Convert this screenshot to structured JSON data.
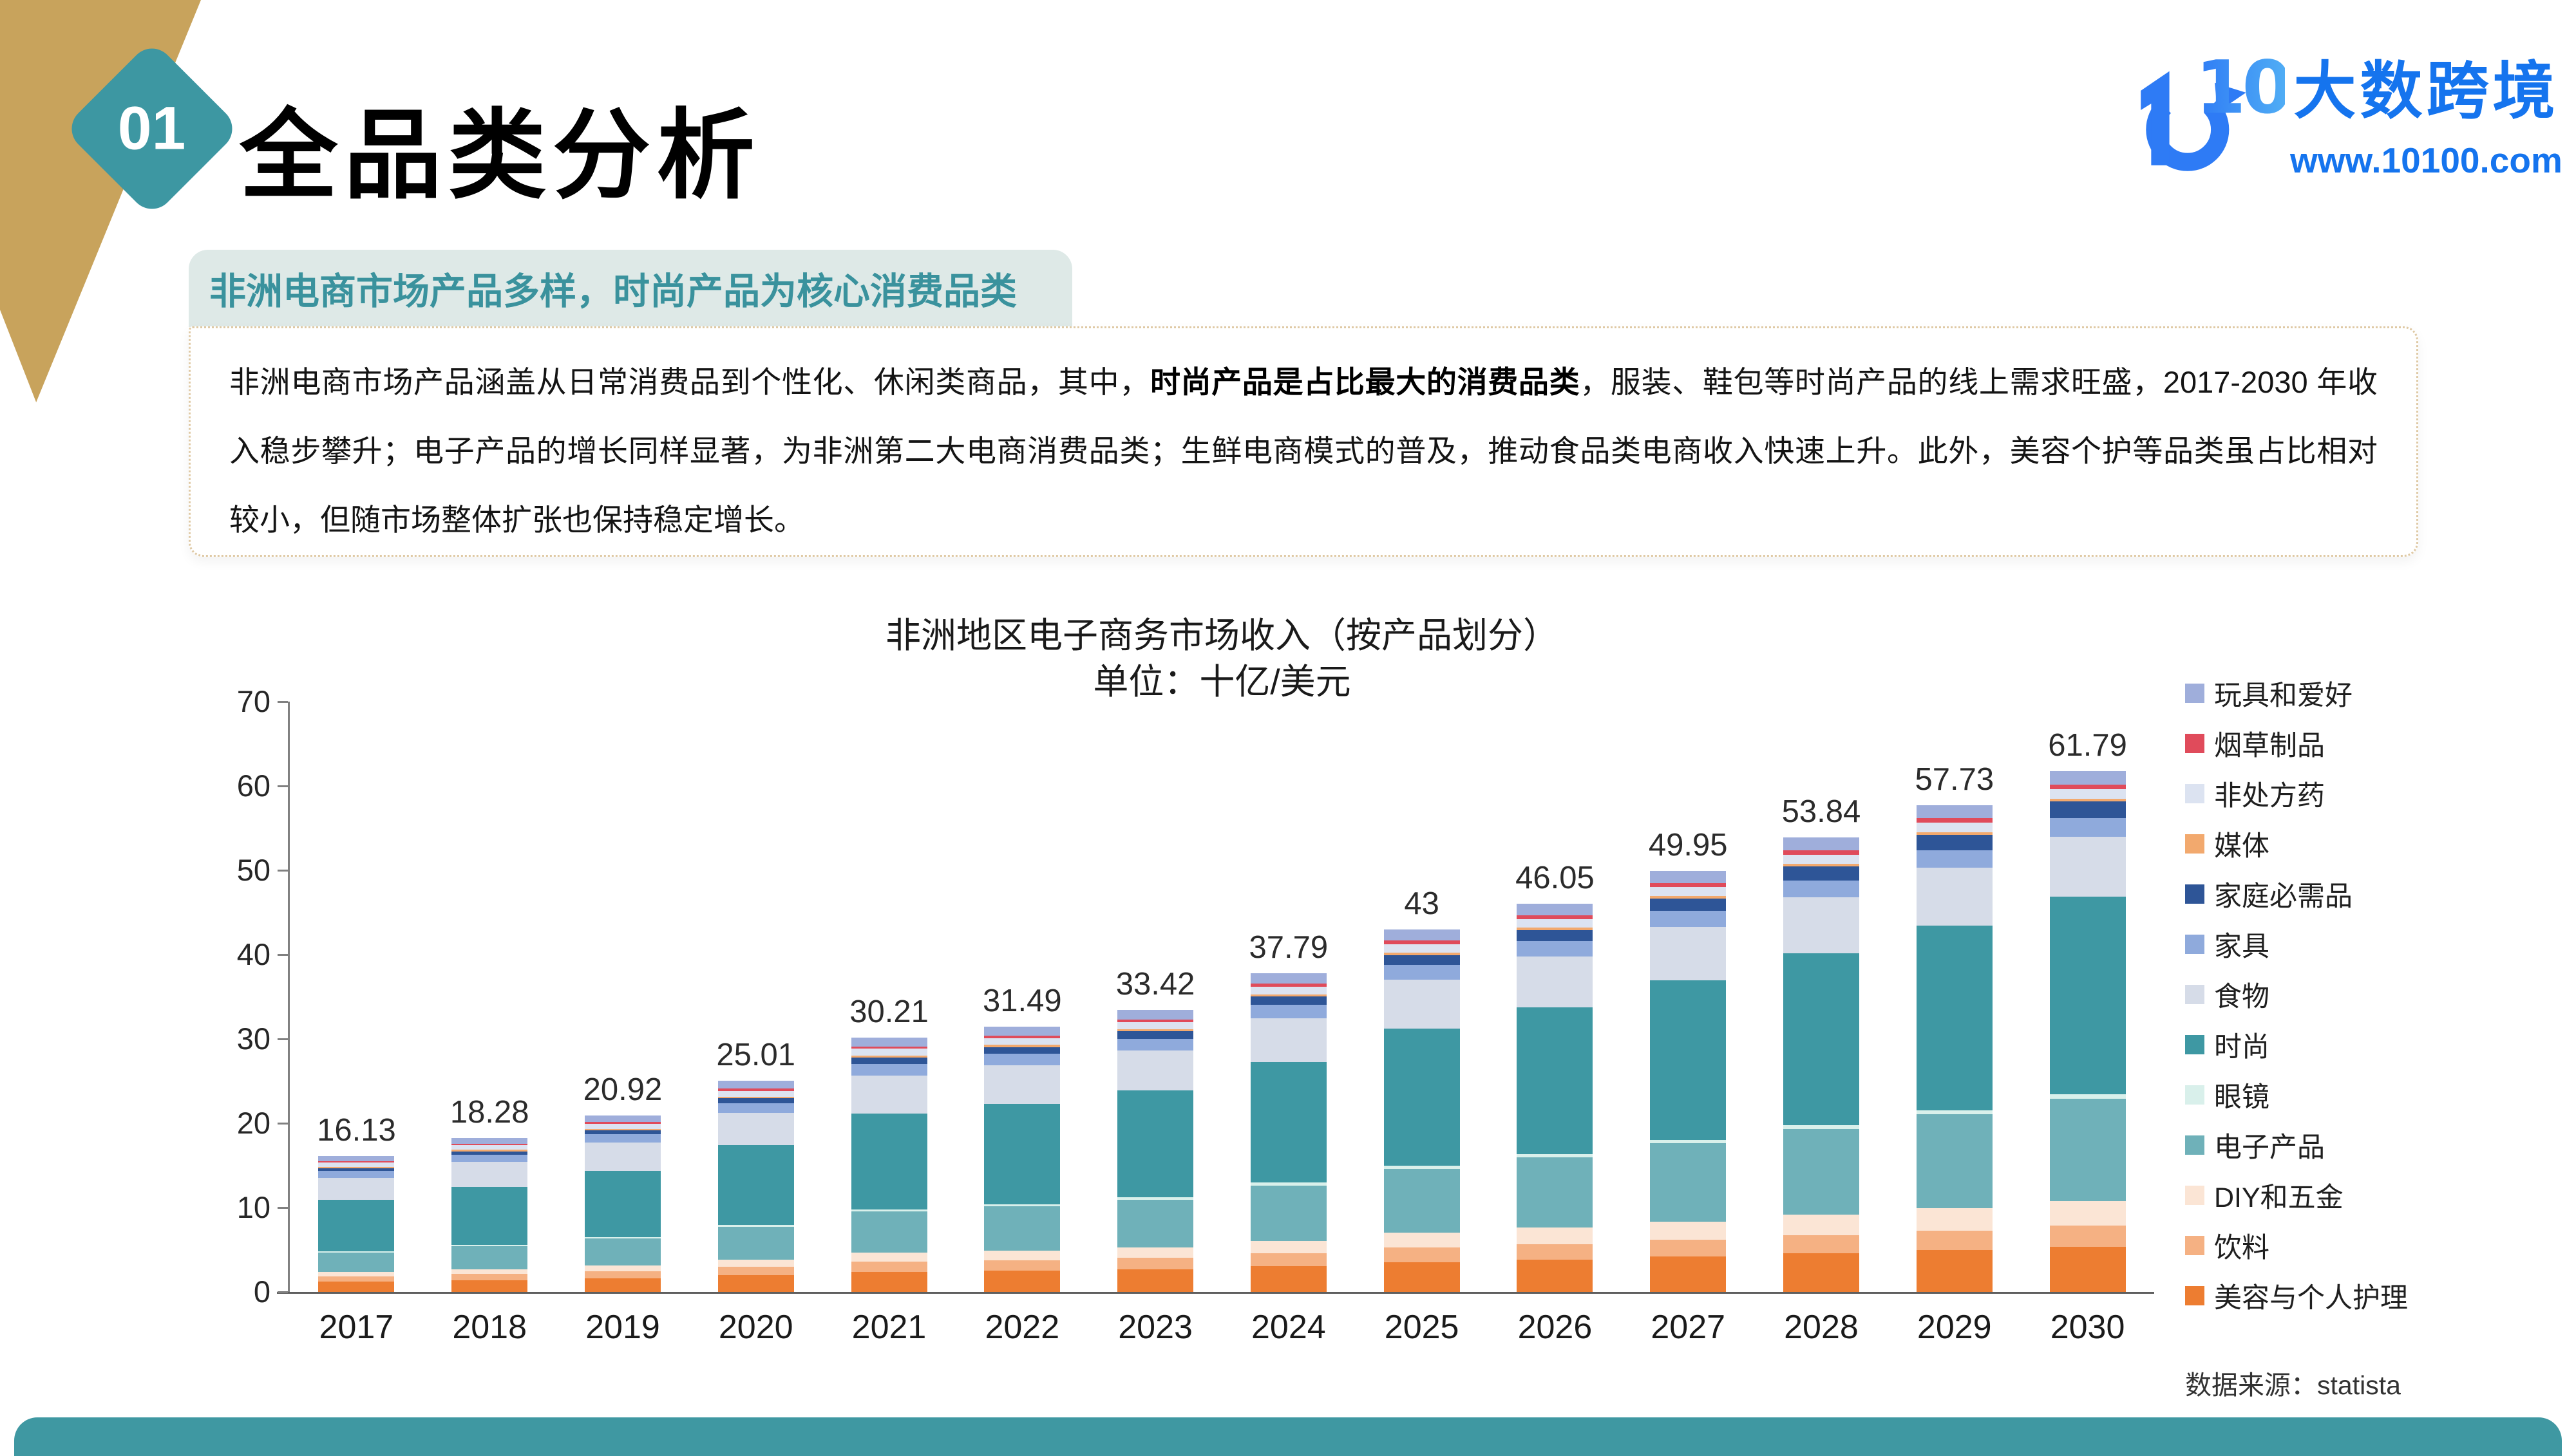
{
  "header": {
    "section_number": "01",
    "title": "全品类分析",
    "logo": {
      "brand": "大数跨境",
      "url_text": "www.10100.com",
      "brand_color": "#1574EE"
    }
  },
  "decor": {
    "gold_ribbon_color": "#C8A35C",
    "diamond_color": "#3D97A2",
    "footer_bar_color": "#3F98A2",
    "highlight_bg": "#DEE9E7",
    "highlight_text_color": "#3A929D"
  },
  "highlight": {
    "text": "非洲电商市场产品多样，时尚产品为核心消费品类"
  },
  "paragraph": {
    "text_before": "非洲电商市场产品涵盖从日常消费品到个性化、休闲类商品，其中，",
    "text_bold": "时尚产品是占比最大的消费品类",
    "text_after": "，服装、鞋包等时尚产品的线上需求旺盛，2017-2030 年收入稳步攀升；电子产品的增长同样显著，为非洲第二大电商消费品类；生鲜电商模式的普及，推动食品类电商收入快速上升。此外，美容个护等品类虽占比相对较小，但随市场整体扩张也保持稳定增长。"
  },
  "chart_data": {
    "type": "bar",
    "stacked": true,
    "title": "非洲地区电子商务市场收入（按产品划分）",
    "subtitle": "单位：十亿/美元",
    "source": "数据来源：statista",
    "categories": [
      "2017",
      "2018",
      "2019",
      "2020",
      "2021",
      "2022",
      "2023",
      "2024",
      "2025",
      "2026",
      "2027",
      "2028",
      "2029",
      "2030"
    ],
    "totals": [
      16.13,
      18.28,
      20.92,
      25.01,
      30.21,
      31.49,
      33.42,
      37.79,
      43,
      46.05,
      49.95,
      53.84,
      57.73,
      61.79
    ],
    "ylim": [
      0,
      70
    ],
    "y_step": 10,
    "grid": false,
    "legend_position": "right",
    "values_estimated": true,
    "series": [
      {
        "name": "美容与个人护理",
        "color": "#ED7D31",
        "values": [
          1.21,
          1.39,
          1.61,
          1.95,
          2.38,
          2.51,
          2.69,
          3.08,
          3.54,
          3.84,
          4.21,
          4.59,
          4.97,
          5.38
        ]
      },
      {
        "name": "饮料",
        "color": "#F5B183",
        "values": [
          0.65,
          0.73,
          0.84,
          1.0,
          1.21,
          1.26,
          1.34,
          1.51,
          1.72,
          1.84,
          2.0,
          2.15,
          2.31,
          2.47
        ]
      },
      {
        "name": "DIY和五金",
        "color": "#FBE5D5",
        "values": [
          0.48,
          0.57,
          0.68,
          0.85,
          1.06,
          1.15,
          1.27,
          1.48,
          1.74,
          1.92,
          2.15,
          2.39,
          2.64,
          2.9
        ]
      },
      {
        "name": "电子产品",
        "color": "#6FB1B9",
        "values": [
          2.34,
          2.72,
          3.2,
          3.93,
          4.86,
          5.2,
          5.65,
          6.54,
          7.61,
          8.34,
          9.24,
          10.18,
          11.14,
          12.17
        ]
      },
      {
        "name": "眼镜",
        "color": "#D9F0EB",
        "values": [
          0.16,
          0.18,
          0.2,
          0.24,
          0.28,
          0.29,
          0.3,
          0.34,
          0.38,
          0.4,
          0.42,
          0.45,
          0.47,
          0.49
        ]
      },
      {
        "name": "时尚",
        "color": "#3E98A3",
        "values": [
          6.05,
          6.86,
          7.86,
          9.41,
          11.37,
          11.87,
          12.61,
          14.27,
          16.26,
          17.43,
          18.92,
          20.42,
          21.91,
          23.48
        ]
      },
      {
        "name": "食物",
        "color": "#D6DCE8",
        "values": [
          2.66,
          2.95,
          3.29,
          3.84,
          4.52,
          4.59,
          4.74,
          5.22,
          5.77,
          6.0,
          6.32,
          6.61,
          6.86,
          7.11
        ]
      },
      {
        "name": "家具",
        "color": "#8FAADC",
        "values": [
          0.81,
          0.89,
          1.0,
          1.16,
          1.37,
          1.39,
          1.44,
          1.58,
          1.75,
          1.82,
          1.92,
          2.01,
          2.09,
          2.16
        ]
      },
      {
        "name": "家庭必需品",
        "color": "#2E5597",
        "values": [
          0.32,
          0.38,
          0.46,
          0.57,
          0.72,
          0.77,
          0.85,
          1.0,
          1.18,
          1.3,
          1.46,
          1.63,
          1.8,
          1.98
        ]
      },
      {
        "name": "媒体",
        "color": "#F2A96E",
        "values": [
          0.16,
          0.18,
          0.19,
          0.22,
          0.26,
          0.26,
          0.26,
          0.28,
          0.3,
          0.3,
          0.31,
          0.31,
          0.31,
          0.31
        ]
      },
      {
        "name": "非处方药",
        "color": "#DCE3F1",
        "values": [
          0.48,
          0.53,
          0.59,
          0.69,
          0.8,
          0.81,
          0.83,
          0.91,
          1.0,
          1.03,
          1.07,
          1.11,
          1.14,
          1.17
        ]
      },
      {
        "name": "烟草制品",
        "color": "#E04B5B",
        "values": [
          0.16,
          0.18,
          0.21,
          0.24,
          0.29,
          0.3,
          0.32,
          0.36,
          0.4,
          0.43,
          0.46,
          0.5,
          0.53,
          0.56
        ]
      },
      {
        "name": "玩具和爱好",
        "color": "#9FAEDB",
        "values": [
          0.65,
          0.71,
          0.79,
          0.92,
          1.08,
          1.09,
          1.12,
          1.23,
          1.35,
          1.4,
          1.46,
          1.52,
          1.56,
          1.61
        ]
      }
    ]
  }
}
